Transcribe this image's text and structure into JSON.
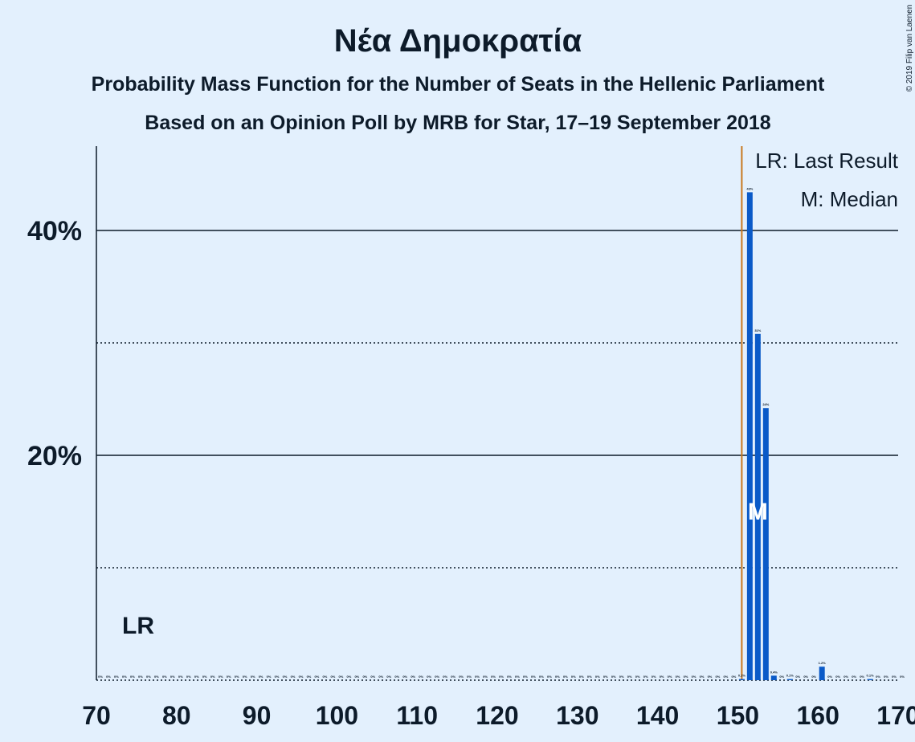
{
  "chart_data": {
    "type": "bar",
    "title": "Νέα Δημοκρατία",
    "subtitle": "Probability Mass Function for the Number of Seats in the Hellenic Parliament",
    "subtitle2": "Based on an Opinion Poll by MRB for Star, 17–19 September 2018",
    "copyright": "© 2019 Filip van Laenen",
    "legend": [
      "LR: Last Result",
      "M: Median"
    ],
    "last_result_label": "LR",
    "median_label": "M",
    "last_result": 150,
    "median": 152,
    "color": "#0a5ac8",
    "last_result_color": "#c8781e",
    "x": [
      70,
      71,
      72,
      73,
      74,
      75,
      76,
      77,
      78,
      79,
      80,
      81,
      82,
      83,
      84,
      85,
      86,
      87,
      88,
      89,
      90,
      91,
      92,
      93,
      94,
      95,
      96,
      97,
      98,
      99,
      100,
      101,
      102,
      103,
      104,
      105,
      106,
      107,
      108,
      109,
      110,
      111,
      112,
      113,
      114,
      115,
      116,
      117,
      118,
      119,
      120,
      121,
      122,
      123,
      124,
      125,
      126,
      127,
      128,
      129,
      130,
      131,
      132,
      133,
      134,
      135,
      136,
      137,
      138,
      139,
      140,
      141,
      142,
      143,
      144,
      145,
      146,
      147,
      148,
      149,
      150,
      151,
      152,
      153,
      154,
      155,
      156,
      157,
      158,
      159,
      160,
      161,
      162,
      163,
      164,
      165,
      166,
      167,
      168,
      169,
      170
    ],
    "values": [
      0,
      0,
      0,
      0,
      0,
      0,
      0,
      0,
      0,
      0,
      0,
      0,
      0,
      0,
      0,
      0,
      0,
      0,
      0,
      0,
      0,
      0,
      0,
      0,
      0,
      0,
      0,
      0,
      0,
      0,
      0,
      0,
      0,
      0,
      0,
      0,
      0,
      0,
      0,
      0,
      0,
      0,
      0,
      0,
      0,
      0,
      0,
      0,
      0,
      0,
      0,
      0,
      0,
      0,
      0,
      0,
      0,
      0,
      0,
      0,
      0,
      0,
      0,
      0,
      0,
      0,
      0,
      0,
      0,
      0,
      0,
      0,
      0,
      0,
      0,
      0,
      0,
      0,
      0,
      0,
      0.1,
      43.4,
      30.8,
      24.2,
      0.4,
      0,
      0.1,
      0,
      0,
      0,
      1.2,
      0,
      0,
      0,
      0,
      0,
      0.1,
      0,
      0,
      0,
      0
    ],
    "value_labels": [
      "0%",
      "0%",
      "0%",
      "0%",
      "0%",
      "0%",
      "0%",
      "0%",
      "0%",
      "0%",
      "0%",
      "0%",
      "0%",
      "0%",
      "0%",
      "0%",
      "0%",
      "0%",
      "0%",
      "0%",
      "0%",
      "0%",
      "0%",
      "0%",
      "0%",
      "0%",
      "0%",
      "0%",
      "0%",
      "0%",
      "0%",
      "0%",
      "0%",
      "0%",
      "0%",
      "0%",
      "0%",
      "0%",
      "0%",
      "0%",
      "0%",
      "0%",
      "0%",
      "0%",
      "0%",
      "0%",
      "0%",
      "0%",
      "0%",
      "0%",
      "0%",
      "0%",
      "0%",
      "0%",
      "0%",
      "0%",
      "0%",
      "0%",
      "0%",
      "0%",
      "0%",
      "0%",
      "0%",
      "0%",
      "0%",
      "0%",
      "0%",
      "0%",
      "0%",
      "0%",
      "0%",
      "0%",
      "0%",
      "0%",
      "0%",
      "0%",
      "0%",
      "0%",
      "0%",
      "0%",
      "0.1%",
      "43%",
      "31%",
      "24%",
      "0.4%",
      "0%",
      "0.1%",
      "0%",
      "0%",
      "0%",
      "1.2%",
      "0%",
      "0%",
      "0%",
      "0%",
      "0%",
      "0.1%",
      "0%",
      "0%",
      "0%",
      "0%"
    ],
    "xlim": [
      70,
      170
    ],
    "xticks": [
      70,
      80,
      90,
      100,
      110,
      120,
      130,
      140,
      150,
      160,
      170
    ],
    "ylim": [
      0,
      47.5
    ],
    "yticks": [
      {
        "value": 20,
        "label": "20%"
      },
      {
        "value": 40,
        "label": "40%"
      }
    ],
    "minor_yticks": [
      10,
      30
    ],
    "grid": true
  }
}
